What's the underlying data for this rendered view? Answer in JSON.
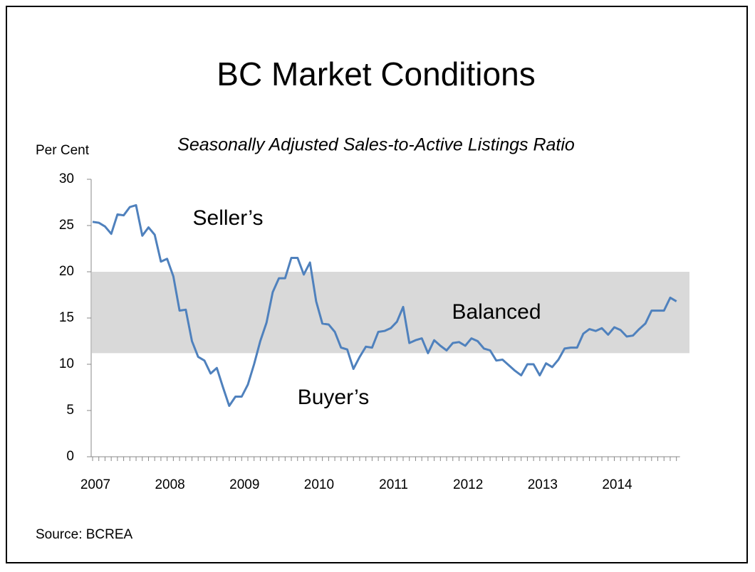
{
  "chart_data": {
    "type": "line",
    "title": "BC Market Conditions",
    "subtitle": "Seasonally Adjusted Sales-to-Active Listings Ratio",
    "y_label": "Per Cent",
    "source": "Source: BCREA",
    "annotations": [
      "Seller’s",
      "Balanced",
      "Buyer’s"
    ],
    "balanced_range": [
      11.2,
      20
    ],
    "band_color": "#d9d9d9",
    "categories": [
      "2007",
      null,
      null,
      null,
      null,
      null,
      null,
      null,
      null,
      null,
      null,
      null,
      "2008",
      null,
      null,
      null,
      null,
      null,
      null,
      null,
      null,
      null,
      null,
      null,
      "2009",
      null,
      null,
      null,
      null,
      null,
      null,
      null,
      null,
      null,
      null,
      null,
      "2010",
      null,
      null,
      null,
      null,
      null,
      null,
      null,
      null,
      null,
      null,
      null,
      "2011",
      null,
      null,
      null,
      null,
      null,
      null,
      null,
      null,
      null,
      null,
      null,
      "2012",
      null,
      null,
      null,
      null,
      null,
      null,
      null,
      null,
      null,
      null,
      null,
      "2013",
      null,
      null,
      null,
      null,
      null,
      null,
      null,
      null,
      null,
      null,
      null,
      "2014",
      null,
      null,
      null,
      null,
      null,
      null,
      null,
      null,
      null,
      null
    ],
    "series": [
      {
        "name": "Sales-to-Active Listings Ratio",
        "color": "#4f81bd",
        "values": [
          25.4,
          25.3,
          24.9,
          24.1,
          26.2,
          26.1,
          27.0,
          27.2,
          23.9,
          24.8,
          24.0,
          21.1,
          21.4,
          19.5,
          15.8,
          15.9,
          12.5,
          10.8,
          10.4,
          9.0,
          9.6,
          7.5,
          5.5,
          6.5,
          6.5,
          7.8,
          10.0,
          12.5,
          14.5,
          17.8,
          19.3,
          19.3,
          21.5,
          21.5,
          19.7,
          21.0,
          16.8,
          14.4,
          14.3,
          13.5,
          11.8,
          11.6,
          9.5,
          10.8,
          11.9,
          11.8,
          13.5,
          13.6,
          13.9,
          14.6,
          16.2,
          12.3,
          12.6,
          12.8,
          11.2,
          12.6,
          12.0,
          11.5,
          12.3,
          12.4,
          12.0,
          12.8,
          12.5,
          11.7,
          11.5,
          10.4,
          10.5,
          9.9,
          9.3,
          8.8,
          10.0,
          10.0,
          8.8,
          10.1,
          9.7,
          10.5,
          11.7,
          11.8,
          11.8,
          13.3,
          13.8,
          13.6,
          13.9,
          13.2,
          14.0,
          13.7,
          13.0,
          13.1,
          13.8,
          14.4,
          15.8,
          15.8,
          15.8,
          17.2,
          16.8
        ]
      }
    ],
    "ylim": [
      0,
      30
    ],
    "yticks": [
      0,
      5,
      10,
      15,
      20,
      25,
      30
    ]
  }
}
